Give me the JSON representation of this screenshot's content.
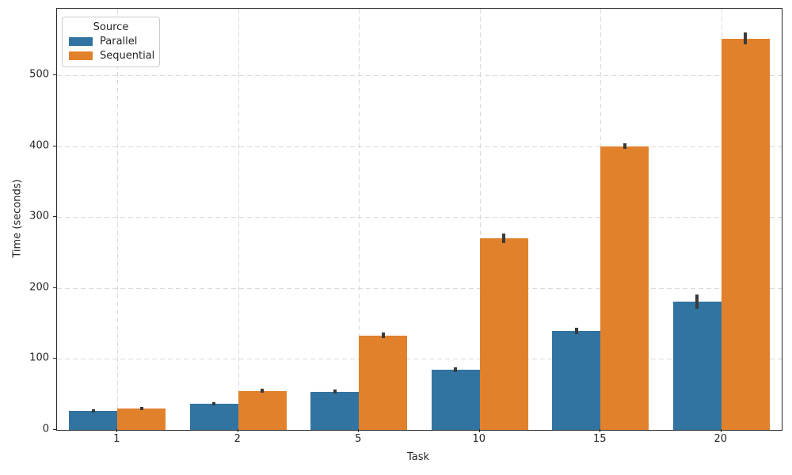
{
  "chart_data": {
    "type": "bar",
    "title": "",
    "xlabel": "Task",
    "ylabel": "Time (seconds)",
    "categories": [
      "1",
      "2",
      "5",
      "10",
      "15",
      "20"
    ],
    "series": [
      {
        "name": "Parallel",
        "color": "#3274a1",
        "values": [
          27,
          37,
          54,
          85,
          140,
          181
        ],
        "errors": [
          2.5,
          2,
          2.5,
          3.5,
          4.5,
          10
        ]
      },
      {
        "name": "Sequential",
        "color": "#e1812c",
        "values": [
          30,
          55,
          133,
          270,
          400,
          552
        ],
        "errors": [
          2.5,
          3,
          4,
          7,
          4,
          8
        ]
      }
    ],
    "ylim": [
      0,
      594
    ],
    "yticks": [
      0,
      100,
      200,
      300,
      400,
      500
    ],
    "grid": true,
    "grid_style": "dashed",
    "error_bar_color": "#3a3a3a",
    "legend": {
      "title": "Source",
      "position": "upper-left",
      "entries": [
        "Parallel",
        "Sequential"
      ]
    }
  }
}
